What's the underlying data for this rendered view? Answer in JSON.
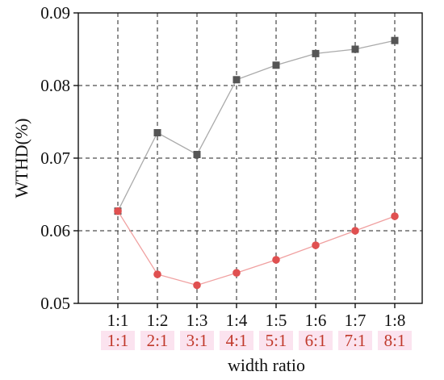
{
  "chart_data": {
    "type": "line",
    "categories": [
      "1:1",
      "1:2",
      "1:3",
      "1:4",
      "1:5",
      "1:6",
      "1:7",
      "1:8"
    ],
    "categories_secondary": [
      "1:1",
      "2:1",
      "3:1",
      "4:1",
      "5:1",
      "6:1",
      "7:1",
      "8:1"
    ],
    "series": [
      {
        "values": [
          0.0627,
          0.0735,
          0.0705,
          0.0808,
          0.0828,
          0.0844,
          0.085,
          0.0862
        ],
        "color": "#555555",
        "marker": "square"
      },
      {
        "values": [
          0.0627,
          0.054,
          0.0525,
          0.0542,
          0.056,
          0.058,
          0.06,
          0.062
        ],
        "color": "#e05050",
        "marker": "circle"
      }
    ],
    "xlabel": "width ratio",
    "ylabel": "WTHD(%)",
    "ylim": [
      0.05,
      0.09
    ],
    "yticks": [
      "0.05",
      "0.06",
      "0.07",
      "0.08",
      "0.09"
    ],
    "grid": true,
    "secondary_label_color": "#c0392b",
    "secondary_label_bg": "#fbe3ef"
  }
}
